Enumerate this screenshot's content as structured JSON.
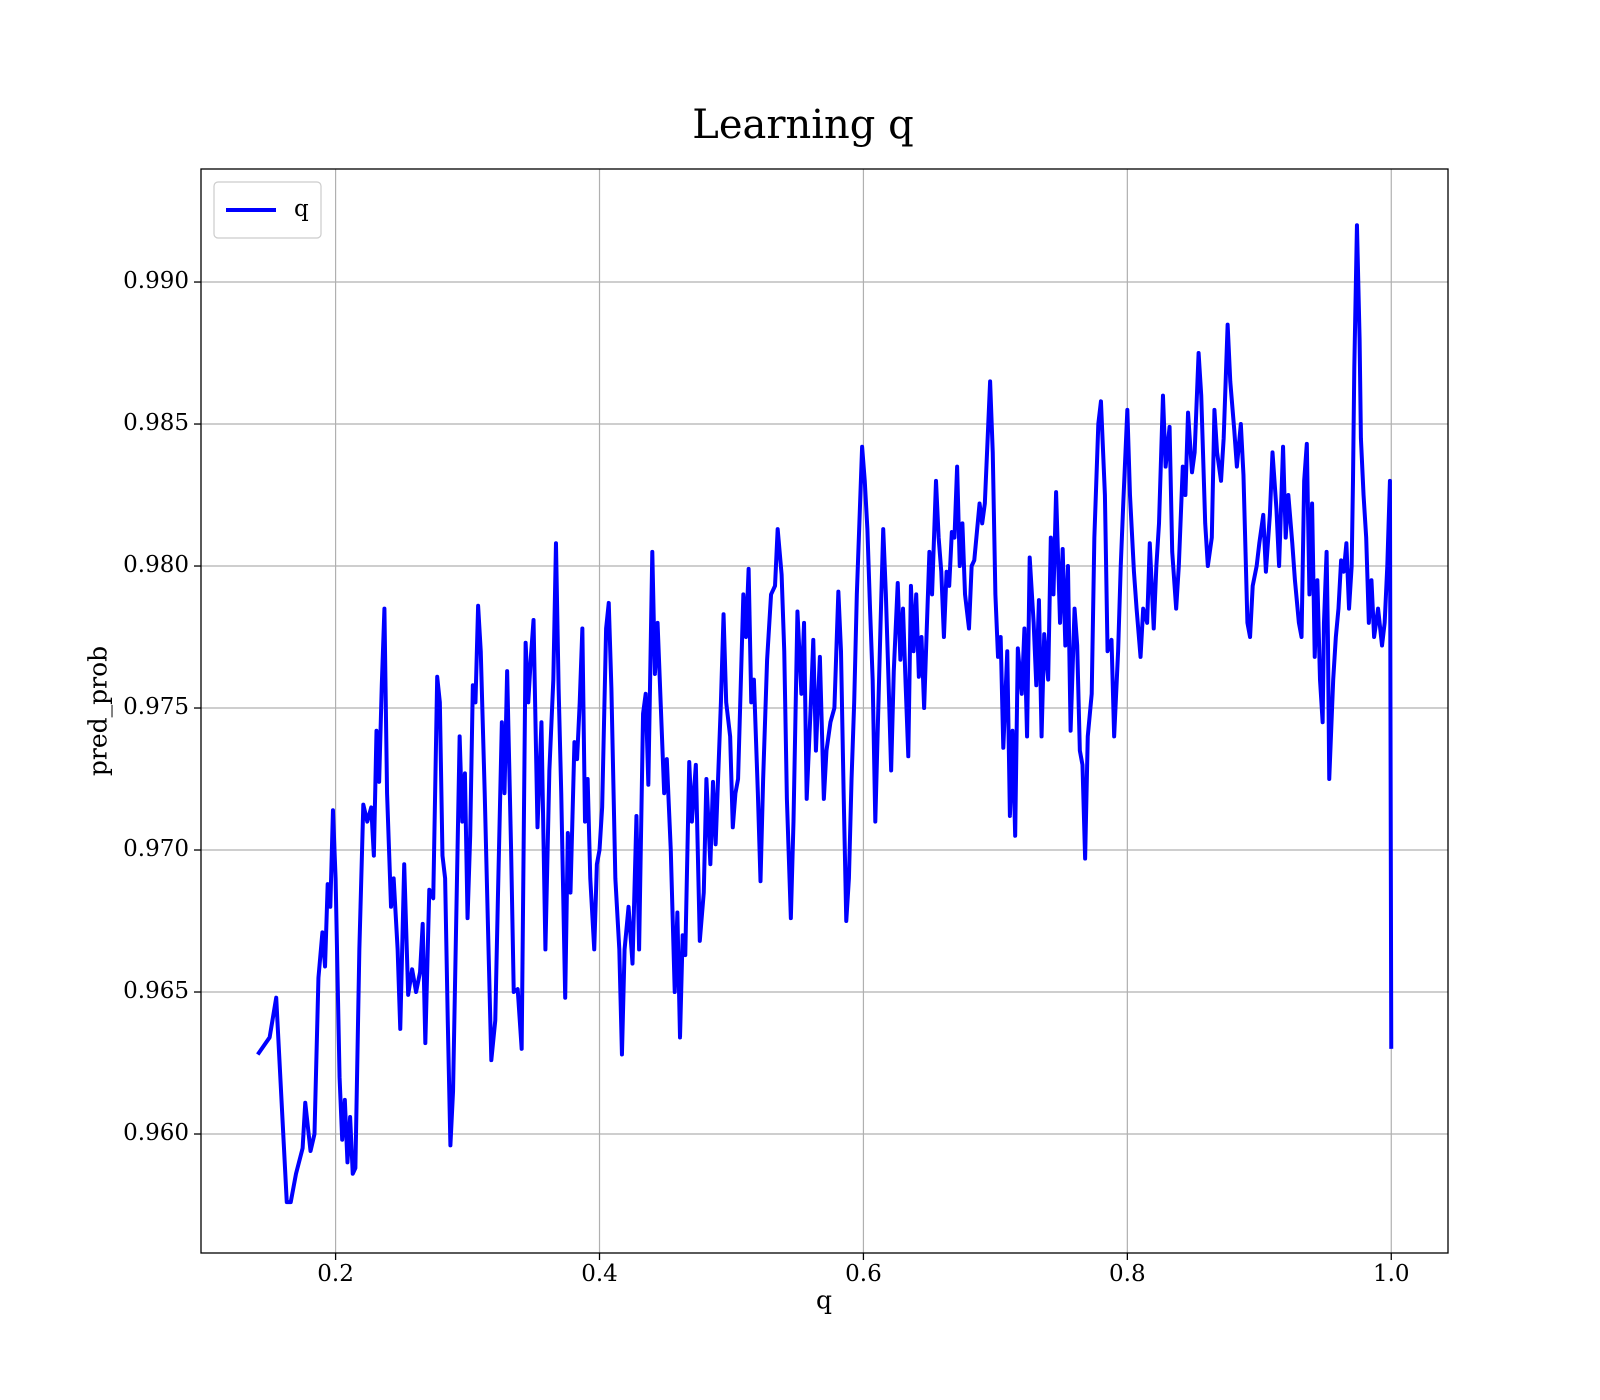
{
  "chart_data": {
    "type": "line",
    "title": "Learning q",
    "xlabel": "q",
    "ylabel": "pred_prob",
    "x": [
      0.141,
      0.15,
      0.155,
      0.163,
      0.166,
      0.17,
      0.175,
      0.177,
      0.181,
      0.184,
      0.187,
      0.19,
      0.192,
      0.194,
      0.196,
      0.198,
      0.2,
      0.203,
      0.205,
      0.207,
      0.209,
      0.211,
      0.213,
      0.215,
      0.218,
      0.221,
      0.224,
      0.227,
      0.229,
      0.231,
      0.233,
      0.235,
      0.237,
      0.239,
      0.242,
      0.244,
      0.247,
      0.249,
      0.252,
      0.255,
      0.258,
      0.261,
      0.264,
      0.266,
      0.268,
      0.271,
      0.274,
      0.277,
      0.279,
      0.281,
      0.283,
      0.285,
      0.287,
      0.289,
      0.291,
      0.294,
      0.296,
      0.298,
      0.3,
      0.302,
      0.304,
      0.306,
      0.308,
      0.31,
      0.313,
      0.316,
      0.318,
      0.321,
      0.323,
      0.326,
      0.328,
      0.33,
      0.333,
      0.335,
      0.338,
      0.341,
      0.344,
      0.346,
      0.348,
      0.35,
      0.353,
      0.356,
      0.359,
      0.362,
      0.365,
      0.367,
      0.369,
      0.371,
      0.374,
      0.376,
      0.378,
      0.381,
      0.383,
      0.385,
      0.387,
      0.389,
      0.391,
      0.393,
      0.396,
      0.398,
      0.4,
      0.402,
      0.405,
      0.407,
      0.409,
      0.412,
      0.415,
      0.417,
      0.419,
      0.422,
      0.425,
      0.428,
      0.43,
      0.433,
      0.435,
      0.437,
      0.44,
      0.442,
      0.444,
      0.449,
      0.451,
      0.454,
      0.457,
      0.459,
      0.461,
      0.463,
      0.465,
      0.468,
      0.47,
      0.473,
      0.476,
      0.479,
      0.481,
      0.484,
      0.486,
      0.488,
      0.492,
      0.494,
      0.496,
      0.499,
      0.501,
      0.503,
      0.505,
      0.509,
      0.511,
      0.513,
      0.515,
      0.517,
      0.52,
      0.522,
      0.524,
      0.527,
      0.53,
      0.533,
      0.535,
      0.538,
      0.54,
      0.542,
      0.545,
      0.547,
      0.55,
      0.553,
      0.555,
      0.557,
      0.56,
      0.562,
      0.564,
      0.567,
      0.57,
      0.572,
      0.575,
      0.578,
      0.581,
      0.583,
      0.585,
      0.587,
      0.589,
      0.591,
      0.593,
      0.595,
      0.599,
      0.601,
      0.603,
      0.605,
      0.607,
      0.609,
      0.611,
      0.613,
      0.615,
      0.617,
      0.619,
      0.621,
      0.623,
      0.626,
      0.628,
      0.63,
      0.632,
      0.634,
      0.636,
      0.638,
      0.64,
      0.642,
      0.644,
      0.646,
      0.648,
      0.65,
      0.652,
      0.655,
      0.657,
      0.659,
      0.661,
      0.663,
      0.665,
      0.667,
      0.669,
      0.671,
      0.673,
      0.675,
      0.677,
      0.68,
      0.682,
      0.684,
      0.686,
      0.688,
      0.69,
      0.692,
      0.696,
      0.698,
      0.7,
      0.702,
      0.704,
      0.706,
      0.709,
      0.711,
      0.713,
      0.715,
      0.717,
      0.72,
      0.722,
      0.724,
      0.726,
      0.729,
      0.731,
      0.733,
      0.735,
      0.737,
      0.74,
      0.742,
      0.744,
      0.746,
      0.749,
      0.751,
      0.753,
      0.755,
      0.757,
      0.76,
      0.762,
      0.764,
      0.766,
      0.768,
      0.77,
      0.773,
      0.775,
      0.778,
      0.78,
      0.783,
      0.785,
      0.788,
      0.79,
      0.793,
      0.795,
      0.797,
      0.8,
      0.802,
      0.805,
      0.807,
      0.81,
      0.812,
      0.815,
      0.817,
      0.82,
      0.822,
      0.824,
      0.827,
      0.829,
      0.832,
      0.834,
      0.837,
      0.839,
      0.842,
      0.844,
      0.846,
      0.849,
      0.851,
      0.854,
      0.856,
      0.859,
      0.861,
      0.864,
      0.866,
      0.868,
      0.871,
      0.873,
      0.876,
      0.878,
      0.881,
      0.883,
      0.886,
      0.888,
      0.891,
      0.893,
      0.895,
      0.898,
      0.9,
      0.903,
      0.905,
      0.908,
      0.91,
      0.913,
      0.915,
      0.918,
      0.92,
      0.922,
      0.925,
      0.927,
      0.93,
      0.932,
      0.934,
      0.936,
      0.938,
      0.94,
      0.942,
      0.944,
      0.946,
      0.948,
      0.949,
      0.951,
      0.952,
      0.953,
      0.956,
      0.958,
      0.96,
      0.962,
      0.964,
      0.966,
      0.968,
      0.97,
      0.971,
      0.972,
      0.974,
      0.975,
      0.976,
      0.977,
      0.979,
      0.981,
      0.983,
      0.985,
      0.987,
      0.99,
      0.993,
      0.995,
      0.997,
      0.999,
      1.0
    ],
    "series": [
      {
        "name": "q",
        "color": "#0000ff",
        "values": [
          0.9628,
          0.9634,
          0.9648,
          0.9576,
          0.9576,
          0.9586,
          0.9595,
          0.9611,
          0.9594,
          0.96,
          0.9655,
          0.9671,
          0.9659,
          0.9688,
          0.968,
          0.9714,
          0.969,
          0.962,
          0.9598,
          0.9612,
          0.959,
          0.9606,
          0.9586,
          0.9588,
          0.9665,
          0.9716,
          0.971,
          0.9715,
          0.9698,
          0.9742,
          0.9724,
          0.9758,
          0.9785,
          0.972,
          0.968,
          0.969,
          0.9665,
          0.9637,
          0.9695,
          0.9649,
          0.9658,
          0.965,
          0.9657,
          0.9674,
          0.9632,
          0.9686,
          0.9683,
          0.9761,
          0.9752,
          0.9698,
          0.969,
          0.964,
          0.9596,
          0.9615,
          0.9665,
          0.974,
          0.971,
          0.9727,
          0.9676,
          0.9705,
          0.9758,
          0.9752,
          0.9786,
          0.977,
          0.972,
          0.9663,
          0.9626,
          0.964,
          0.9683,
          0.9745,
          0.972,
          0.9763,
          0.97,
          0.965,
          0.9651,
          0.963,
          0.9773,
          0.9752,
          0.9768,
          0.9781,
          0.9708,
          0.9745,
          0.9665,
          0.9728,
          0.976,
          0.9808,
          0.9757,
          0.972,
          0.9648,
          0.9706,
          0.9685,
          0.9738,
          0.9732,
          0.9752,
          0.9778,
          0.971,
          0.9725,
          0.969,
          0.9665,
          0.9695,
          0.97,
          0.9715,
          0.9778,
          0.9787,
          0.9757,
          0.969,
          0.9665,
          0.9628,
          0.9665,
          0.968,
          0.966,
          0.9712,
          0.9665,
          0.9748,
          0.9755,
          0.9723,
          0.9805,
          0.9762,
          0.978,
          0.972,
          0.9732,
          0.97,
          0.965,
          0.9678,
          0.9634,
          0.967,
          0.9663,
          0.9731,
          0.971,
          0.973,
          0.9668,
          0.9685,
          0.9725,
          0.9695,
          0.9724,
          0.9702,
          0.9752,
          0.9783,
          0.9752,
          0.974,
          0.9708,
          0.972,
          0.9725,
          0.979,
          0.9775,
          0.9799,
          0.9752,
          0.976,
          0.972,
          0.9689,
          0.9725,
          0.9767,
          0.979,
          0.9793,
          0.9813,
          0.9797,
          0.977,
          0.9718,
          0.9676,
          0.971,
          0.9784,
          0.9755,
          0.978,
          0.9718,
          0.975,
          0.9774,
          0.9735,
          0.9768,
          0.9718,
          0.9735,
          0.9745,
          0.975,
          0.9791,
          0.977,
          0.972,
          0.9675,
          0.969,
          0.9725,
          0.9752,
          0.979,
          0.9842,
          0.983,
          0.9813,
          0.9785,
          0.976,
          0.971,
          0.9745,
          0.978,
          0.9813,
          0.979,
          0.976,
          0.9728,
          0.9763,
          0.9794,
          0.9767,
          0.9785,
          0.9758,
          0.9733,
          0.9793,
          0.977,
          0.979,
          0.9761,
          0.9775,
          0.975,
          0.9778,
          0.9805,
          0.979,
          0.983,
          0.981,
          0.9798,
          0.9775,
          0.9798,
          0.9793,
          0.9812,
          0.981,
          0.9835,
          0.98,
          0.9815,
          0.979,
          0.9778,
          0.98,
          0.9802,
          0.9812,
          0.9822,
          0.9815,
          0.9822,
          0.9865,
          0.984,
          0.979,
          0.9768,
          0.9775,
          0.9736,
          0.977,
          0.9712,
          0.9742,
          0.9705,
          0.9771,
          0.9755,
          0.9778,
          0.974,
          0.9803,
          0.978,
          0.9758,
          0.9788,
          0.974,
          0.9776,
          0.976,
          0.981,
          0.979,
          0.9826,
          0.978,
          0.9806,
          0.9772,
          0.98,
          0.9742,
          0.9785,
          0.9772,
          0.9735,
          0.973,
          0.9697,
          0.974,
          0.9755,
          0.981,
          0.985,
          0.9858,
          0.9825,
          0.977,
          0.9774,
          0.974,
          0.977,
          0.98,
          0.9823,
          0.9855,
          0.9825,
          0.9798,
          0.9785,
          0.9768,
          0.9785,
          0.978,
          0.9808,
          0.9778,
          0.98,
          0.9815,
          0.986,
          0.9835,
          0.9849,
          0.9805,
          0.9785,
          0.98,
          0.9835,
          0.9825,
          0.9854,
          0.9833,
          0.984,
          0.9875,
          0.986,
          0.9815,
          0.98,
          0.981,
          0.9855,
          0.984,
          0.983,
          0.9845,
          0.9885,
          0.9865,
          0.9848,
          0.9835,
          0.985,
          0.9832,
          0.978,
          0.9775,
          0.9793,
          0.98,
          0.9808,
          0.9818,
          0.9798,
          0.9818,
          0.984,
          0.982,
          0.98,
          0.9842,
          0.981,
          0.9825,
          0.9808,
          0.9795,
          0.978,
          0.9775,
          0.983,
          0.9843,
          0.979,
          0.9822,
          0.9768,
          0.9795,
          0.976,
          0.9745,
          0.978,
          0.9805,
          0.9775,
          0.9725,
          0.976,
          0.9775,
          0.9785,
          0.9802,
          0.9798,
          0.9808,
          0.9785,
          0.98,
          0.983,
          0.987,
          0.992,
          0.99,
          0.988,
          0.9845,
          0.9825,
          0.981,
          0.978,
          0.9795,
          0.9775,
          0.9785,
          0.9772,
          0.978,
          0.98,
          0.983,
          0.963
        ]
      }
    ],
    "xlim": [
      0.098,
      1.043
    ],
    "ylim": [
      0.95581,
      0.99398
    ],
    "xticks": [
      0.2,
      0.4,
      0.6,
      0.8,
      {
        "value": 1,
        "label": "1.0"
      }
    ],
    "yticks": [
      {
        "value": 0.96,
        "label": "0.960"
      },
      {
        "value": 0.965,
        "label": "0.965"
      },
      {
        "value": 0.97,
        "label": "0.970"
      },
      {
        "value": 0.975,
        "label": "0.975"
      },
      {
        "value": 0.98,
        "label": "0.980"
      },
      {
        "value": 0.985,
        "label": "0.985"
      },
      {
        "value": 0.99,
        "label": "0.990"
      }
    ],
    "grid": true,
    "legend": "upper left"
  }
}
